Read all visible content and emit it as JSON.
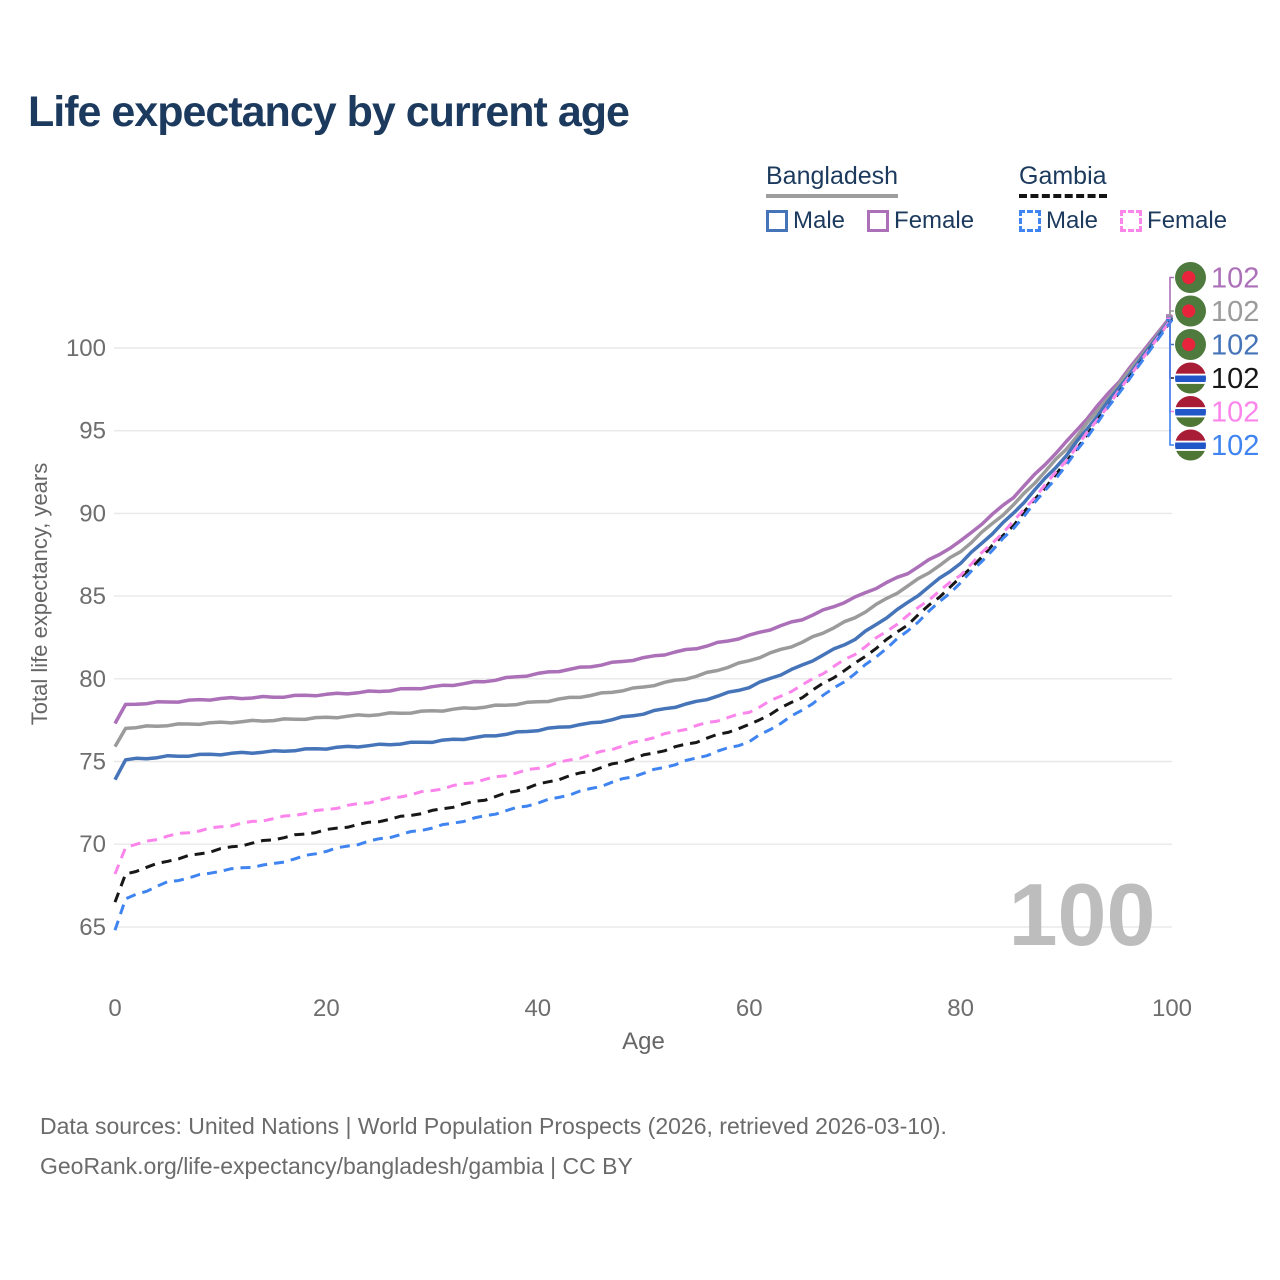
{
  "title": "Life expectancy by current age",
  "watermark": "100",
  "legend": {
    "groups": [
      {
        "country": "Bangladesh",
        "line_style": "solid",
        "underline_color": "#9e9e9e",
        "items": [
          {
            "label": "Male",
            "color": "#4674b8",
            "box_style": "solid"
          },
          {
            "label": "Female",
            "color": "#ab70b8",
            "box_style": "solid"
          }
        ]
      },
      {
        "country": "Gambia",
        "line_style": "dashed",
        "underline_color": "#141414",
        "items": [
          {
            "label": "Male",
            "color": "#3f84f0",
            "box_style": "dashed"
          },
          {
            "label": "Female",
            "color": "#fc85ec",
            "box_style": "dashed"
          }
        ]
      }
    ]
  },
  "footer": {
    "line1": "Data sources: United Nations | World Population Prospects (2026, retrieved 2026-03-10).",
    "line2": "GeoRank.org/life-expectancy/bangladesh/gambia | CC BY"
  },
  "chart_data": {
    "type": "line",
    "title": "Life expectancy by current age",
    "xlabel": "Age",
    "ylabel": "Total life expectancy, years",
    "xlim": [
      0,
      100
    ],
    "ylim": [
      63.5,
      103.5
    ],
    "x_ticks": [
      0,
      20,
      40,
      60,
      80,
      100
    ],
    "y_ticks": [
      65,
      70,
      75,
      80,
      85,
      90,
      95,
      100
    ],
    "grid": "horizontal",
    "legend_position": "top-right",
    "ages": [
      0,
      1,
      5,
      10,
      15,
      20,
      25,
      30,
      35,
      40,
      45,
      50,
      55,
      60,
      65,
      70,
      75,
      80,
      85,
      90,
      95,
      100
    ],
    "series": [
      {
        "name": "Bangladesh Female",
        "country": "Bangladesh",
        "flag": "bd",
        "color": "#ab70b8",
        "dash": false,
        "end_label": "102",
        "label_row": 0,
        "values": [
          77.3,
          78.45,
          78.6,
          78.8,
          78.9,
          79.05,
          79.25,
          79.5,
          79.85,
          80.3,
          80.75,
          81.25,
          81.85,
          82.6,
          83.6,
          84.9,
          86.4,
          88.3,
          91.0,
          94.3,
          98.0,
          102.0
        ]
      },
      {
        "name": "Bangladesh",
        "country": "Bangladesh",
        "flag": "bd",
        "color": "#9b9b9b",
        "dash": false,
        "end_label": "102",
        "label_row": 1,
        "values": [
          75.9,
          77.0,
          77.2,
          77.35,
          77.5,
          77.65,
          77.85,
          78.05,
          78.3,
          78.6,
          79.0,
          79.5,
          80.15,
          81.1,
          82.2,
          83.7,
          85.6,
          87.7,
          90.5,
          93.9,
          97.8,
          101.9
        ]
      },
      {
        "name": "Bangladesh Male",
        "country": "Bangladesh",
        "flag": "bd",
        "color": "#4674b8",
        "dash": false,
        "end_label": "102",
        "label_row": 2,
        "values": [
          73.9,
          75.1,
          75.3,
          75.45,
          75.6,
          75.8,
          76.0,
          76.2,
          76.5,
          76.9,
          77.3,
          77.9,
          78.6,
          79.5,
          80.8,
          82.4,
          84.6,
          87.0,
          90.0,
          93.5,
          97.6,
          101.85
        ]
      },
      {
        "name": "Gambia",
        "country": "Gambia",
        "flag": "gm",
        "color": "#171717",
        "dash": true,
        "end_label": "102",
        "label_row": 3,
        "values": [
          66.5,
          68.2,
          69.0,
          69.7,
          70.3,
          70.85,
          71.4,
          72.0,
          72.7,
          73.6,
          74.45,
          75.35,
          76.2,
          77.2,
          78.9,
          80.9,
          83.3,
          86.1,
          89.3,
          93.1,
          97.35,
          101.75
        ]
      },
      {
        "name": "Gambia Female",
        "country": "Gambia",
        "flag": "gm",
        "color": "#fc85ec",
        "dash": true,
        "end_label": "102",
        "label_row": 4,
        "values": [
          68.2,
          69.8,
          70.5,
          71.05,
          71.55,
          72.1,
          72.65,
          73.25,
          73.9,
          74.6,
          75.4,
          76.3,
          77.15,
          78.0,
          79.6,
          81.5,
          83.8,
          86.3,
          89.5,
          93.2,
          97.4,
          101.8
        ]
      },
      {
        "name": "Gambia Male",
        "country": "Gambia",
        "flag": "gm",
        "color": "#3f84f0",
        "dash": true,
        "end_label": "102",
        "label_row": 5,
        "values": [
          64.8,
          66.7,
          67.7,
          68.4,
          68.8,
          69.6,
          70.3,
          71.0,
          71.7,
          72.5,
          73.35,
          74.3,
          75.2,
          76.2,
          78.1,
          80.3,
          82.9,
          85.8,
          89.1,
          92.9,
          97.3,
          101.7
        ]
      }
    ],
    "flag_colors": {
      "bd_green": "#4f7a3e",
      "bd_red": "#e8243d",
      "gm_red": "#a81c36",
      "gm_blue": "#2156c8",
      "gm_green": "#4e7635",
      "gm_white": "#ffffff"
    }
  }
}
